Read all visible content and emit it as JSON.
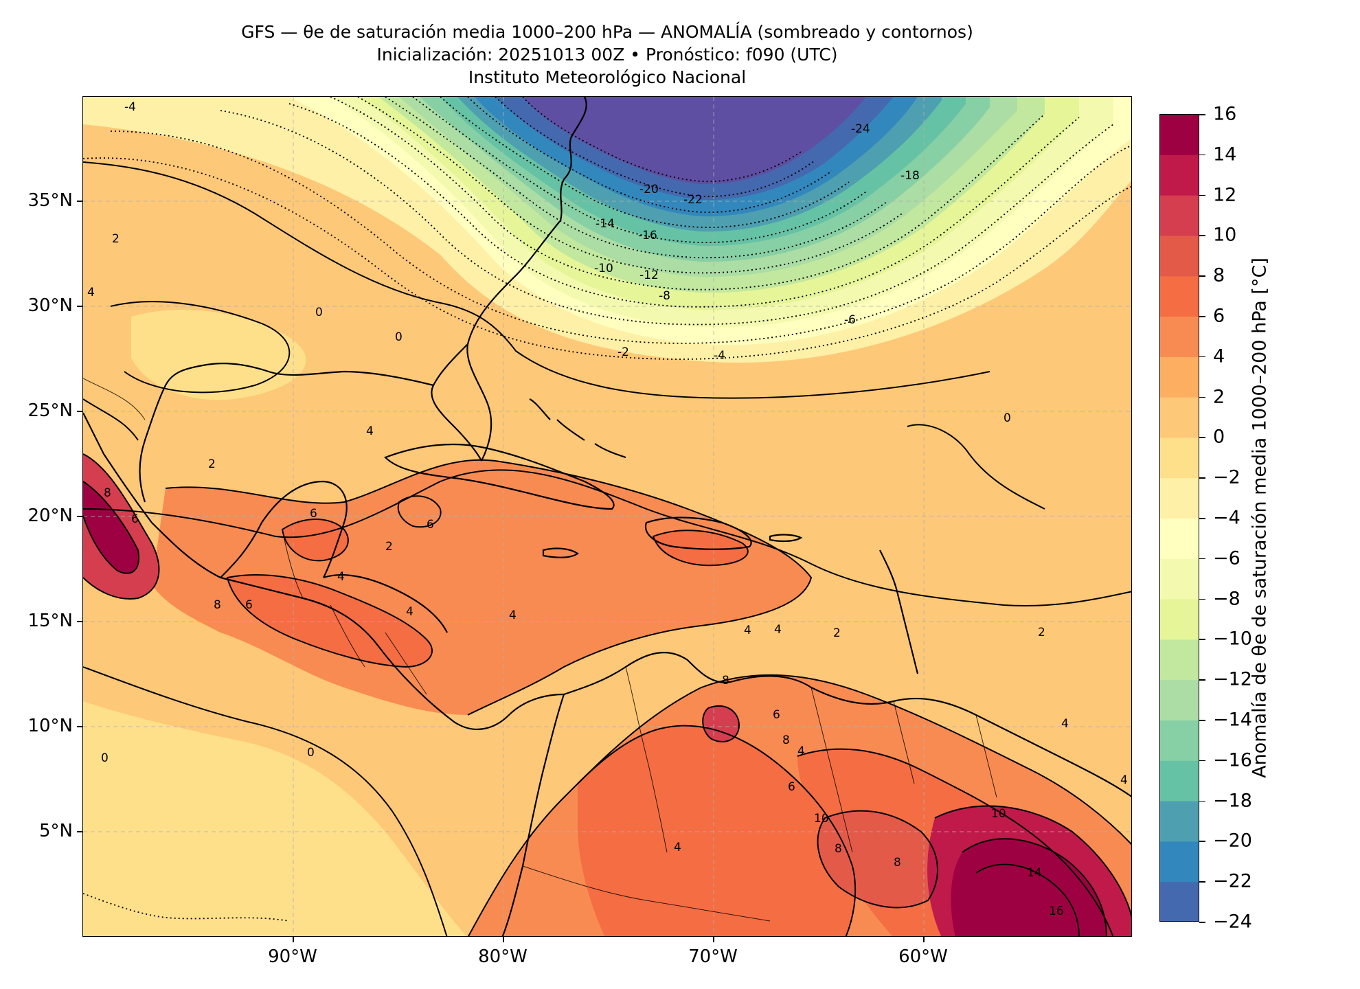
{
  "title": {
    "line1": "GFS — θe de saturación media 1000–200 hPa — ANOMALÍA (sombreado y contornos)",
    "line2": "Inicialización: 20251013 00Z   •   Pronóstico: f090 (UTC)",
    "line3": "Instituto Meteorológico Nacional"
  },
  "map": {
    "lat_ticks": [
      "35°N",
      "30°N",
      "25°N",
      "20°N",
      "15°N",
      "10°N",
      "5°N"
    ],
    "lon_ticks": [
      "90°W",
      "80°W",
      "70°W",
      "60°W"
    ],
    "gridlines": true,
    "contour_labels": [
      {
        "text": "-4"
      },
      {
        "text": "-24"
      },
      {
        "text": "-18"
      },
      {
        "text": "-20"
      },
      {
        "text": "-22"
      },
      {
        "text": "-14"
      },
      {
        "text": "-16"
      },
      {
        "text": "-10"
      },
      {
        "text": "-12"
      },
      {
        "text": "-8"
      },
      {
        "text": "-6"
      },
      {
        "text": "-2"
      },
      {
        "text": "-4"
      },
      {
        "text": "0"
      },
      {
        "text": "0"
      },
      {
        "text": "0"
      },
      {
        "text": "2"
      },
      {
        "text": "4"
      },
      {
        "text": "2"
      },
      {
        "text": "4"
      },
      {
        "text": "6"
      },
      {
        "text": "6"
      },
      {
        "text": "8"
      },
      {
        "text": "6"
      },
      {
        "text": "8"
      },
      {
        "text": "6"
      },
      {
        "text": "4"
      },
      {
        "text": "4"
      },
      {
        "text": "4"
      },
      {
        "text": "8"
      },
      {
        "text": "6"
      },
      {
        "text": "8"
      },
      {
        "text": "4"
      },
      {
        "text": "6"
      },
      {
        "text": "10"
      },
      {
        "text": "8"
      },
      {
        "text": "4"
      },
      {
        "text": "10"
      },
      {
        "text": "14"
      },
      {
        "text": "16"
      },
      {
        "text": "8"
      },
      {
        "text": "4"
      },
      {
        "text": "4"
      },
      {
        "text": "0"
      },
      {
        "text": "2"
      },
      {
        "text": "2"
      },
      {
        "text": "0"
      },
      {
        "text": "2"
      },
      {
        "text": "4"
      },
      {
        "text": "4"
      }
    ]
  },
  "colorbar": {
    "label": "Anomalía de θe de saturación media 1000–200 hPa [°C]",
    "ticks": [
      "16",
      "14",
      "12",
      "10",
      "8",
      "6",
      "4",
      "2",
      "0",
      "−2",
      "−4",
      "−6",
      "−8",
      "−10",
      "−12",
      "−14",
      "−16",
      "−18",
      "−20",
      "−22",
      "−24"
    ],
    "colors": [
      "#9e0142",
      "#c01a4b",
      "#d53e4f",
      "#e45a49",
      "#f46d43",
      "#f88b52",
      "#fdae61",
      "#fdc877",
      "#fee08b",
      "#fef0a7",
      "#ffffbf",
      "#f3faaf",
      "#e6f598",
      "#c2e89f",
      "#abdda4",
      "#87cfa4",
      "#66c2a5",
      "#4ea0b1",
      "#3288bd",
      "#4569ae",
      "#5e4fa2"
    ]
  }
}
